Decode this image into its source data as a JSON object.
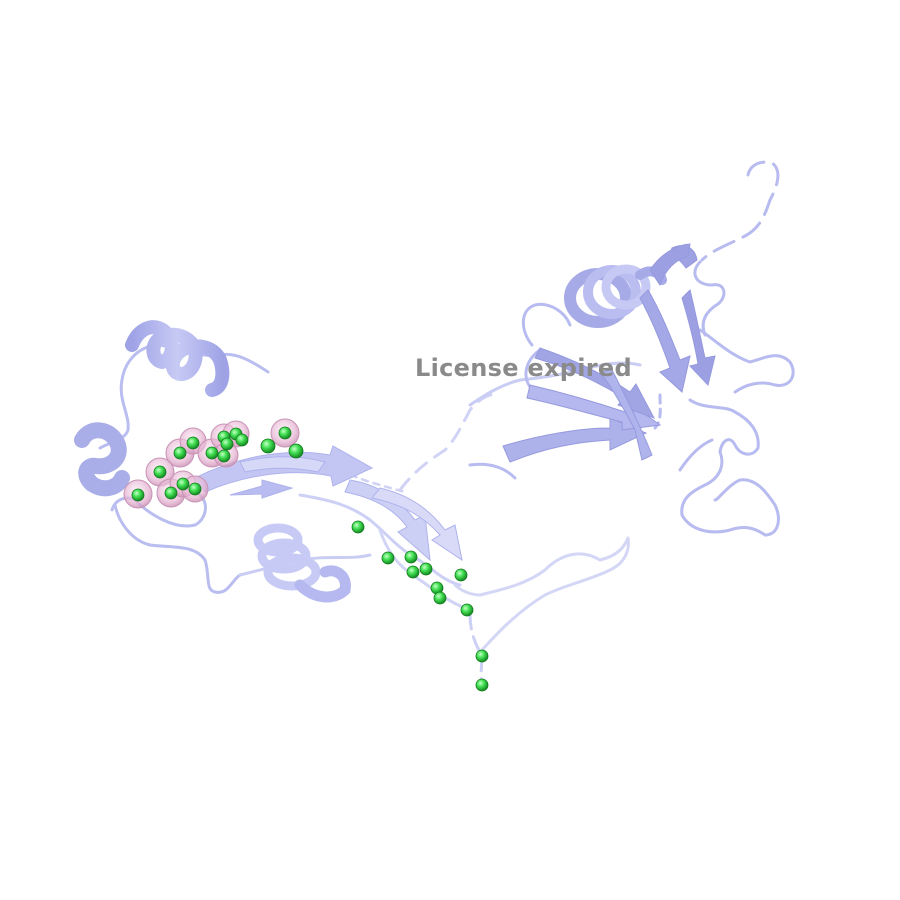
{
  "watermark": {
    "text": "License expired"
  },
  "colors": {
    "ribbon": "#b9bdf0",
    "ribbon_dark": "#a7abe6",
    "ribbon_light": "#d4d6f6",
    "atom_green": "#33dd44",
    "halo_pink": "#e9b9d6"
  }
}
